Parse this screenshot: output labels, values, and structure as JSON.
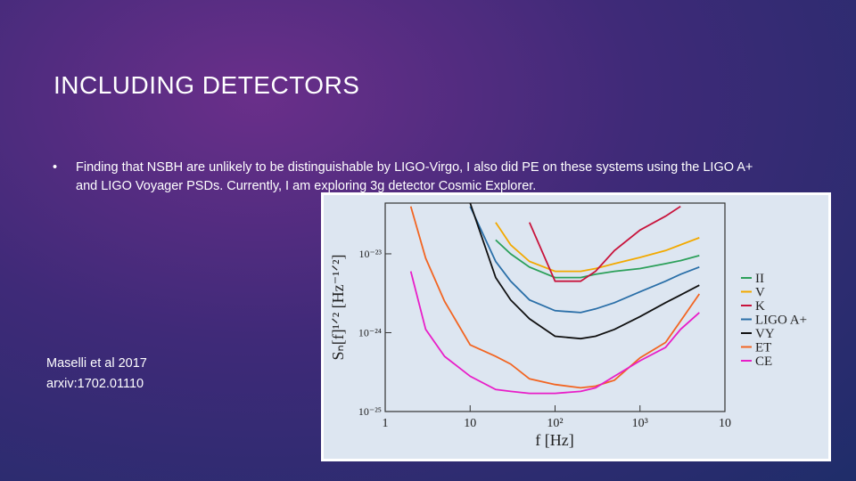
{
  "slide": {
    "title": "INCLUDING DETECTORS",
    "bullet": "Finding that NSBH are unlikely to be distinguishable by LIGO-Virgo, I also did PE on these systems using the LIGO A+ and LIGO Voyager PSDs.  Currently, I am exploring 3g detector Cosmic Explorer.",
    "citation": [
      "Maselli et al 2017",
      "arxiv:1702.01110"
    ]
  },
  "chart_data": {
    "type": "line",
    "x_label": "f [Hz]",
    "y_label": "Sₙ[f]¹ᐟ² [Hz⁻¹ᐟ²]",
    "xscale": "log",
    "yscale": "log",
    "xlim": [
      1,
      10000
    ],
    "ylim": [
      1e-25,
      4.4e-23
    ],
    "xticks": [
      1,
      10,
      {
        "value": 100,
        "label": "10²"
      },
      {
        "value": 1000,
        "label": "10³"
      },
      {
        "value": 10000,
        "label": "10"
      }
    ],
    "yticks": [
      {
        "value": 1e-25,
        "label": "10⁻²⁵"
      },
      {
        "value": 1e-24,
        "label": "10⁻²⁴"
      },
      {
        "value": 1e-23,
        "label": "10⁻²³"
      }
    ],
    "x": [
      2,
      3,
      5,
      10,
      20,
      30,
      50,
      100,
      200,
      300,
      500,
      1000,
      2000,
      3000,
      5000
    ],
    "series": [
      {
        "name": "II",
        "color": "#2ca05a",
        "values": [
          null,
          null,
          null,
          null,
          1.5e-23,
          1e-23,
          6.8e-24,
          5e-24,
          5e-24,
          5.5e-24,
          6e-24,
          6.5e-24,
          7.5e-24,
          8.2e-24,
          9.5e-24
        ]
      },
      {
        "name": "V",
        "color": "#f2a900",
        "values": [
          null,
          null,
          null,
          null,
          2.5e-23,
          1.3e-23,
          8e-24,
          6e-24,
          6e-24,
          6.5e-24,
          7.5e-24,
          9e-24,
          1.1e-23,
          1.3e-23,
          1.6e-23
        ]
      },
      {
        "name": "K",
        "color": "#c8143c",
        "values": [
          null,
          null,
          null,
          null,
          null,
          null,
          2.5e-23,
          4.5e-24,
          4.5e-24,
          6e-24,
          1.1e-23,
          2e-23,
          3e-23,
          4e-23,
          null
        ]
      },
      {
        "name": "LIGO A+",
        "color": "#2a6fa8",
        "values": [
          null,
          null,
          null,
          4e-23,
          8e-24,
          4.5e-24,
          2.6e-24,
          1.9e-24,
          1.8e-24,
          2e-24,
          2.4e-24,
          3.3e-24,
          4.5e-24,
          5.5e-24,
          6.8e-24
        ]
      },
      {
        "name": "VY",
        "color": "#111111",
        "values": [
          null,
          null,
          null,
          4.4e-23,
          5e-24,
          2.6e-24,
          1.5e-24,
          9e-25,
          8.4e-25,
          9e-25,
          1.1e-24,
          1.6e-24,
          2.4e-24,
          3e-24,
          4e-24
        ]
      },
      {
        "name": "ET",
        "color": "#f26522",
        "values": [
          4e-23,
          8.8e-24,
          2.5e-24,
          7e-25,
          5e-25,
          4e-25,
          2.6e-25,
          2.2e-25,
          2e-25,
          2.1e-25,
          2.5e-25,
          4.8e-25,
          7.5e-25,
          1.4e-24,
          3.1e-24
        ]
      },
      {
        "name": "CE",
        "color": "#e81ec8",
        "values": [
          6e-24,
          1.1e-24,
          5e-25,
          2.8e-25,
          1.9e-25,
          1.8e-25,
          1.7e-25,
          1.7e-25,
          1.8e-25,
          2e-25,
          2.8e-25,
          4.4e-25,
          6.5e-25,
          1.1e-24,
          1.8e-24
        ]
      }
    ]
  }
}
